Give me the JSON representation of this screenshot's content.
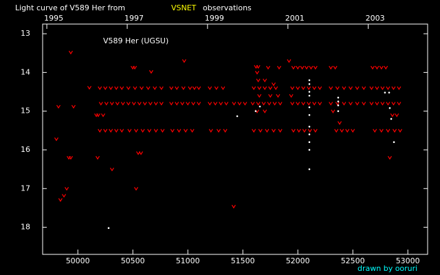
{
  "chart_data": {
    "type": "scatter",
    "title": "Light curve of V589 Her from",
    "title_highlight": "VSNET",
    "title_end": "observations",
    "annotation": "V589 Her (UGSU)",
    "footer": "drawn by ooruri",
    "xlim": [
      49680,
      53180
    ],
    "xticks": [
      50000,
      50500,
      51000,
      51500,
      52000,
      52500,
      53000
    ],
    "x2ticks": [
      {
        "value": 49718,
        "label": "1995"
      },
      {
        "value": 50449,
        "label": "1997"
      },
      {
        "value": 51179,
        "label": "1999"
      },
      {
        "value": 51910,
        "label": "2001"
      },
      {
        "value": 52640,
        "label": "2003"
      }
    ],
    "ylim": [
      12.75,
      18.7
    ],
    "y_inverted": true,
    "yticks": [
      13,
      14,
      15,
      16,
      17,
      18
    ],
    "series": [
      {
        "marker": "v",
        "color": "#ff0000",
        "x": [
          49805,
          49824,
          49842,
          49874,
          49899,
          49918,
          49936,
          49936,
          49961,
          50105,
          50168,
          50186,
          50180,
          50311,
          50200,
          50250,
          50300,
          50350,
          50400,
          50210,
          50260,
          50310,
          50360,
          50410,
          50200,
          50250,
          50300,
          50350,
          50400,
          50230,
          50499,
          50518,
          50460,
          50520,
          50580,
          50640,
          50700,
          50760,
          50460,
          50510,
          50560,
          50610,
          50660,
          50710,
          50760,
          50470,
          50530,
          50590,
          50650,
          50710,
          50770,
          50549,
          50574,
          50530,
          50667,
          50967,
          50850,
          50900,
          50960,
          51020,
          51060,
          51100,
          50850,
          50900,
          50950,
          51000,
          51050,
          51100,
          50860,
          50920,
          50980,
          51040,
          51200,
          51260,
          51320,
          51200,
          51250,
          51300,
          51350,
          51210,
          51280,
          51340,
          51417,
          51420,
          51470,
          51520,
          51620,
          51640,
          51630,
          51640,
          51700,
          51600,
          51650,
          51700,
          51750,
          51800,
          51650,
          51750,
          51820,
          51590,
          51640,
          51690,
          51740,
          51790,
          51840,
          51630,
          51700,
          51600,
          51660,
          51720,
          51780,
          51840,
          51730,
          51830,
          51780,
          51960,
          52000,
          52040,
          52080,
          52120,
          52160,
          51950,
          52000,
          52050,
          52100,
          52150,
          52200,
          51950,
          52000,
          52050,
          52100,
          52150,
          52200,
          51960,
          52010,
          52060,
          52110,
          52160,
          51920,
          51940,
          52300,
          52340,
          52300,
          52360,
          52420,
          52480,
          52540,
          52600,
          52300,
          52360,
          52420,
          52480,
          52540,
          52600,
          52350,
          52400,
          52450,
          52500,
          52380,
          52320,
          52680,
          52720,
          52760,
          52800,
          52670,
          52720,
          52770,
          52820,
          52870,
          52920,
          52670,
          52720,
          52770,
          52820,
          52870,
          52920,
          52700,
          52760,
          52820,
          52880,
          52930,
          52860,
          52900,
          52836
        ],
        "values": [
          15.72,
          14.88,
          17.29,
          17.18,
          17.0,
          16.2,
          16.2,
          13.48,
          14.88,
          14.39,
          15.1,
          15.1,
          16.2,
          16.5,
          14.4,
          14.4,
          14.4,
          14.4,
          14.4,
          14.8,
          14.8,
          14.8,
          14.8,
          14.8,
          15.5,
          15.5,
          15.5,
          15.5,
          15.5,
          15.1,
          13.87,
          13.87,
          14.4,
          14.4,
          14.4,
          14.4,
          14.4,
          14.4,
          14.8,
          14.8,
          14.8,
          14.8,
          14.8,
          14.8,
          14.8,
          15.5,
          15.5,
          15.5,
          15.5,
          15.5,
          15.5,
          16.08,
          16.08,
          17.0,
          13.98,
          13.7,
          14.4,
          14.4,
          14.4,
          14.4,
          14.4,
          14.4,
          14.8,
          14.8,
          14.8,
          14.8,
          14.8,
          14.8,
          15.5,
          15.5,
          15.5,
          15.5,
          14.4,
          14.4,
          14.4,
          14.8,
          14.8,
          14.8,
          14.8,
          15.5,
          15.5,
          15.5,
          17.46,
          14.8,
          14.8,
          14.8,
          13.85,
          13.85,
          14.0,
          14.2,
          14.2,
          14.4,
          14.4,
          14.4,
          14.4,
          14.4,
          14.6,
          14.6,
          14.6,
          14.8,
          14.8,
          14.8,
          14.8,
          14.8,
          14.8,
          15.0,
          15.0,
          15.5,
          15.5,
          15.5,
          15.5,
          15.5,
          13.87,
          13.87,
          14.3,
          13.87,
          13.87,
          13.87,
          13.87,
          13.87,
          13.87,
          14.4,
          14.4,
          14.4,
          14.4,
          14.4,
          14.4,
          14.8,
          14.8,
          14.8,
          14.8,
          14.8,
          14.8,
          15.5,
          15.5,
          15.5,
          15.5,
          15.5,
          13.7,
          14.6,
          13.87,
          13.87,
          14.4,
          14.4,
          14.4,
          14.4,
          14.4,
          14.4,
          14.8,
          14.8,
          14.8,
          14.8,
          14.8,
          14.8,
          15.5,
          15.5,
          15.5,
          15.5,
          15.3,
          15.0,
          13.87,
          13.87,
          13.87,
          13.87,
          14.4,
          14.4,
          14.4,
          14.4,
          14.4,
          14.4,
          14.8,
          14.8,
          14.8,
          14.8,
          14.8,
          14.8,
          15.5,
          15.5,
          15.5,
          15.5,
          15.5,
          15.1,
          15.1,
          16.2
        ]
      },
      {
        "marker": "dot",
        "color": "#ffffff",
        "x": [
          50280,
          51449,
          51617,
          51655,
          52105,
          52105,
          52105,
          52105,
          52105,
          52105,
          52105,
          52105,
          52105,
          52105,
          52105,
          52367,
          52367,
          52367,
          52367,
          52792,
          52830,
          52836,
          52849,
          52874
        ],
        "values": [
          18.02,
          15.13,
          15.0,
          14.88,
          14.2,
          14.3,
          14.5,
          14.6,
          14.9,
          15.1,
          15.4,
          15.6,
          15.8,
          16.0,
          16.5,
          14.65,
          14.75,
          14.85,
          15.0,
          14.52,
          14.52,
          14.92,
          15.2,
          15.8
        ]
      }
    ],
    "title_color": "#ffffff",
    "highlight_color": "#ffff00",
    "footer_color": "#00ffff"
  }
}
